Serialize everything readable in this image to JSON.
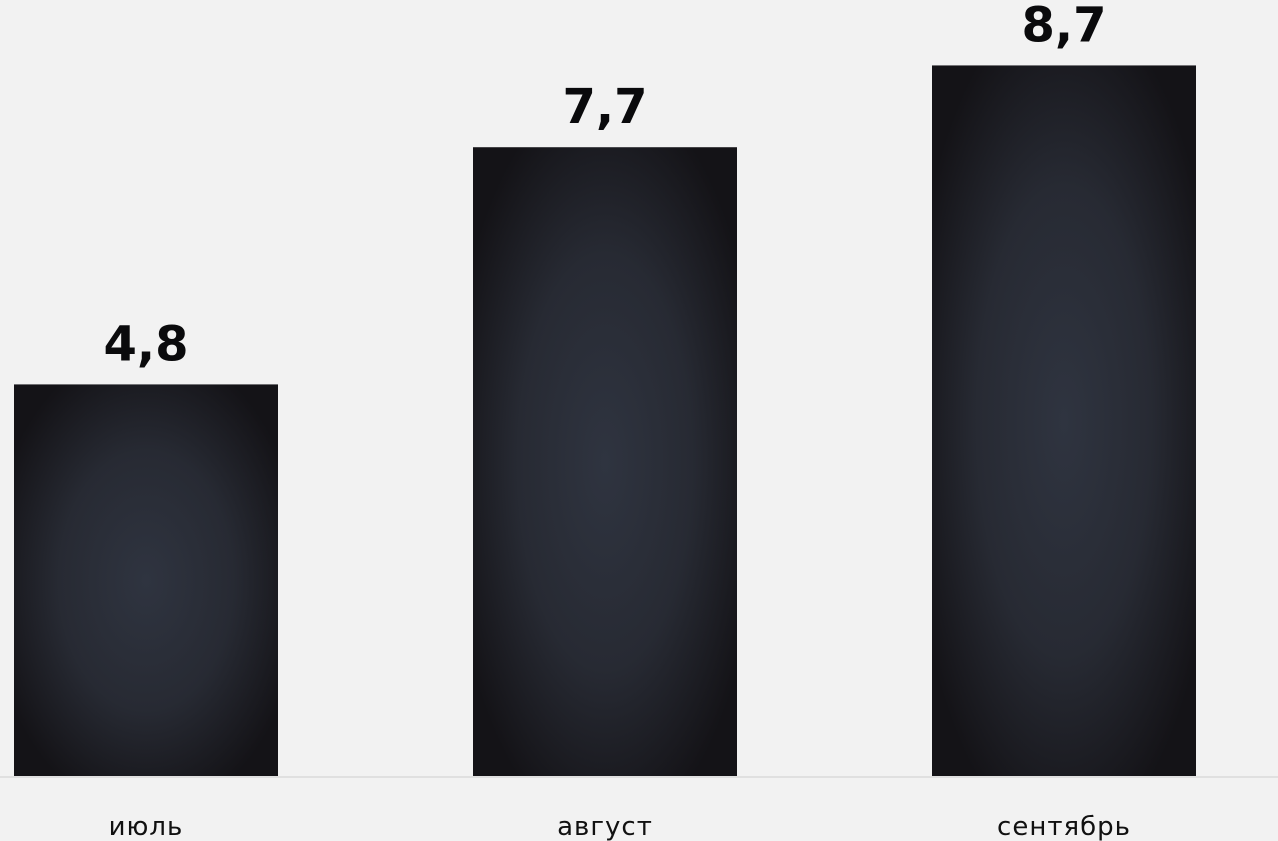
{
  "chart_data": {
    "type": "bar",
    "categories": [
      "июль",
      "август",
      "сентябрь"
    ],
    "values": [
      4.8,
      7.7,
      8.7
    ],
    "value_labels": [
      "4,8",
      "7,7",
      "8,7"
    ],
    "title": "",
    "xlabel": "",
    "ylabel": "",
    "ylim": [
      0,
      9.5
    ],
    "grid": false,
    "legend": "none",
    "colors": {
      "background": "#f2f2f2",
      "bar_edge": "#141317",
      "bar_center": "#2f3440",
      "baseline": "#e0e0e0",
      "text": "#0a0a0c"
    }
  }
}
